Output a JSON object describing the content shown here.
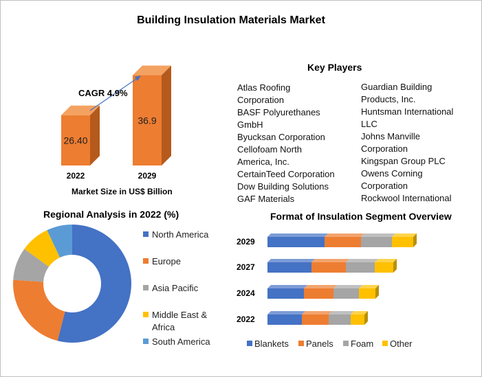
{
  "title": "Building Insulation Materials Market",
  "colors": {
    "orange": "#ed7d31",
    "blue": "#4472c4",
    "gray": "#a5a5a5",
    "yellow": "#ffc000",
    "lightblue": "#5b9bd5"
  },
  "key_players": {
    "title": "Key Players",
    "col1": [
      "Atlas Roofing",
      "Corporation",
      "BASF Polyurethanes",
      "GmbH",
      "Byucksan Corporation",
      "Cellofoam North",
      "America, Inc.",
      "CertainTeed Corporation",
      "Dow Building Solutions",
      "GAF Materials"
    ],
    "col2": [
      "Guardian Building",
      "Products, Inc.",
      "Huntsman International",
      "LLC",
      "Johns Manville",
      "Corporation",
      "Kingspan Group PLC",
      "Owens Corning",
      "Corporation",
      "Rockwool International"
    ]
  },
  "chart_data": [
    {
      "type": "bar",
      "title": "",
      "xlabel": "Market Size in US$ Billion",
      "categories": [
        "2022",
        "2029"
      ],
      "values": [
        26.4,
        36.9
      ],
      "data_labels": [
        "26.40",
        "36.9"
      ],
      "annotation": "CAGR 4.9%"
    },
    {
      "type": "pie",
      "title": "Regional Analysis in 2022 (%)",
      "donut": true,
      "labels": [
        "North America",
        "Europe",
        "Asia Pacific",
        "Middle East & Africa",
        "South America"
      ],
      "legend_lines": [
        [
          "North America"
        ],
        [
          "Europe"
        ],
        [
          "Asia Pacific"
        ],
        [
          "Middle East &",
          "Africa"
        ],
        [
          "South America"
        ]
      ],
      "values": [
        54,
        22,
        9,
        8,
        7
      ],
      "colors": [
        "#4472c4",
        "#ed7d31",
        "#a5a5a5",
        "#ffc000",
        "#5b9bd5"
      ],
      "legend": "right"
    },
    {
      "type": "bar",
      "orientation": "horizontal",
      "stacked": true,
      "title": "Format of Insulation Segment Overview",
      "categories": [
        "2029",
        "2027",
        "2024",
        "2022"
      ],
      "series": [
        {
          "name": "Blankets",
          "values": [
            83,
            64,
            53,
            50
          ]
        },
        {
          "name": "Panels",
          "values": [
            53,
            50,
            43,
            39
          ]
        },
        {
          "name": "Foam",
          "values": [
            45,
            42,
            37,
            32
          ]
        },
        {
          "name": "Other",
          "values": [
            31,
            27,
            24,
            20
          ]
        }
      ],
      "colors": [
        "#4472c4",
        "#ed7d31",
        "#a5a5a5",
        "#ffc000"
      ],
      "legend": "bottom"
    }
  ]
}
